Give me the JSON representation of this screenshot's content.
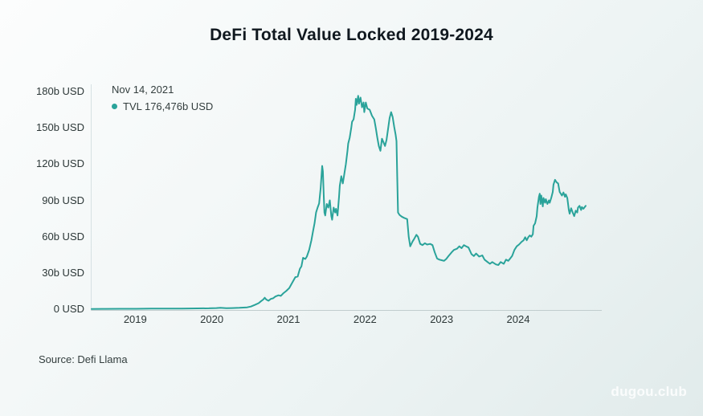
{
  "page": {
    "title": "DeFi Total Value Locked 2019-2024",
    "source_note": "Source: Defi Llama",
    "watermark": "dugou.club"
  },
  "tooltip": {
    "date": "Nov 14, 2021",
    "value_text": "TVL 176,476b USD"
  },
  "colors": {
    "line": "#2aa39a",
    "dot": "#2aa39a",
    "axis_v": "#d6e1e3",
    "axis_h": "#c1cdce",
    "text": "#2c3737"
  },
  "chart_data": {
    "type": "line",
    "title": "DeFi Total Value Locked 2019-2024",
    "xlabel": "",
    "ylabel": "",
    "legend_position": "top-left",
    "grid": false,
    "x_domain": [
      2018.42,
      2025.08
    ],
    "y_domain": [
      0,
      180
    ],
    "x_ticks": [
      2019,
      2020,
      2021,
      2022,
      2023,
      2024
    ],
    "y_ticks": [
      {
        "value": 180,
        "label": "180b USD"
      },
      {
        "value": 150,
        "label": "150b USD"
      },
      {
        "value": 120,
        "label": "120b USD"
      },
      {
        "value": 90,
        "label": "90b USD"
      },
      {
        "value": 60,
        "label": "60b USD"
      },
      {
        "value": 30,
        "label": "30b USD"
      },
      {
        "value": 0,
        "label": "0 USD"
      }
    ],
    "highlight": {
      "date": "Nov 14, 2021",
      "series": "TVL",
      "value_billions_usd": 176.476
    },
    "series": [
      {
        "name": "TVL",
        "unit": "b USD",
        "color": "#2aa39a",
        "points": [
          [
            2018.42,
            0.2
          ],
          [
            2018.6,
            0.25
          ],
          [
            2018.8,
            0.3
          ],
          [
            2019.0,
            0.35
          ],
          [
            2019.2,
            0.45
          ],
          [
            2019.4,
            0.5
          ],
          [
            2019.6,
            0.55
          ],
          [
            2019.8,
            0.65
          ],
          [
            2019.95,
            0.7
          ],
          [
            2020.05,
            0.9
          ],
          [
            2020.1,
            1.2
          ],
          [
            2020.18,
            0.8
          ],
          [
            2020.25,
            0.9
          ],
          [
            2020.35,
            1.1
          ],
          [
            2020.45,
            1.5
          ],
          [
            2020.5,
            2.2
          ],
          [
            2020.55,
            3.5
          ],
          [
            2020.6,
            5.0
          ],
          [
            2020.63,
            6.5
          ],
          [
            2020.66,
            8.0
          ],
          [
            2020.68,
            9.5
          ],
          [
            2020.7,
            8.0
          ],
          [
            2020.73,
            7.0
          ],
          [
            2020.76,
            8.5
          ],
          [
            2020.79,
            9.0
          ],
          [
            2020.82,
            10.5
          ],
          [
            2020.86,
            11.5
          ],
          [
            2020.89,
            11.0
          ],
          [
            2020.92,
            13.0
          ],
          [
            2020.96,
            15.0
          ],
          [
            2021.0,
            17.5
          ],
          [
            2021.04,
            22.0
          ],
          [
            2021.08,
            26.5
          ],
          [
            2021.11,
            27.0
          ],
          [
            2021.14,
            33.5
          ],
          [
            2021.16,
            35.5
          ],
          [
            2021.18,
            42.5
          ],
          [
            2021.21,
            41.5
          ],
          [
            2021.23,
            43.5
          ],
          [
            2021.26,
            49.0
          ],
          [
            2021.29,
            57.0
          ],
          [
            2021.31,
            64.0
          ],
          [
            2021.33,
            71.0
          ],
          [
            2021.35,
            80.0
          ],
          [
            2021.37,
            84.0
          ],
          [
            2021.39,
            87.5
          ],
          [
            2021.41,
            100.0
          ],
          [
            2021.43,
            118.5
          ],
          [
            2021.44,
            114.0
          ],
          [
            2021.45,
            95.0
          ],
          [
            2021.46,
            80.0
          ],
          [
            2021.47,
            77.5
          ],
          [
            2021.49,
            87.0
          ],
          [
            2021.51,
            84.0
          ],
          [
            2021.53,
            90.0
          ],
          [
            2021.55,
            77.0
          ],
          [
            2021.56,
            74.0
          ],
          [
            2021.58,
            84.0
          ],
          [
            2021.6,
            80.0
          ],
          [
            2021.61,
            83.0
          ],
          [
            2021.63,
            77.5
          ],
          [
            2021.65,
            93.0
          ],
          [
            2021.66,
            102.0
          ],
          [
            2021.68,
            110.0
          ],
          [
            2021.7,
            104.0
          ],
          [
            2021.72,
            112.0
          ],
          [
            2021.74,
            120.0
          ],
          [
            2021.76,
            131.0
          ],
          [
            2021.77,
            137.0
          ],
          [
            2021.79,
            142.0
          ],
          [
            2021.81,
            150.0
          ],
          [
            2021.82,
            155.0
          ],
          [
            2021.84,
            157.0
          ],
          [
            2021.86,
            165.0
          ],
          [
            2021.87,
            174.0
          ],
          [
            2021.88,
            169.0
          ],
          [
            2021.9,
            176.476
          ],
          [
            2021.91,
            170.0
          ],
          [
            2021.93,
            175.0
          ],
          [
            2021.95,
            167.0
          ],
          [
            2021.97,
            171.0
          ],
          [
            2021.98,
            163.0
          ],
          [
            2022.0,
            171.0
          ],
          [
            2022.02,
            166.0
          ],
          [
            2022.05,
            165.0
          ],
          [
            2022.08,
            160.0
          ],
          [
            2022.11,
            157.0
          ],
          [
            2022.13,
            150.0
          ],
          [
            2022.15,
            142.0
          ],
          [
            2022.17,
            135.0
          ],
          [
            2022.19,
            131.0
          ],
          [
            2022.21,
            141.0
          ],
          [
            2022.23,
            138.0
          ],
          [
            2022.25,
            135.0
          ],
          [
            2022.27,
            140.0
          ],
          [
            2022.29,
            149.0
          ],
          [
            2022.31,
            158.0
          ],
          [
            2022.33,
            163.0
          ],
          [
            2022.35,
            159.0
          ],
          [
            2022.37,
            151.0
          ],
          [
            2022.39,
            144.0
          ],
          [
            2022.4,
            139.0
          ],
          [
            2022.41,
            110.0
          ],
          [
            2022.42,
            80.0
          ],
          [
            2022.44,
            78.0
          ],
          [
            2022.47,
            76.5
          ],
          [
            2022.5,
            75.5
          ],
          [
            2022.54,
            74.5
          ],
          [
            2022.56,
            60.0
          ],
          [
            2022.58,
            52.0
          ],
          [
            2022.61,
            56.0
          ],
          [
            2022.63,
            58.0
          ],
          [
            2022.66,
            61.5
          ],
          [
            2022.68,
            60.0
          ],
          [
            2022.71,
            54.0
          ],
          [
            2022.74,
            53.0
          ],
          [
            2022.77,
            54.5
          ],
          [
            2022.8,
            53.5
          ],
          [
            2022.84,
            54.0
          ],
          [
            2022.87,
            53.0
          ],
          [
            2022.9,
            47.0
          ],
          [
            2022.93,
            42.0
          ],
          [
            2022.96,
            41.0
          ],
          [
            2022.99,
            40.5
          ],
          [
            2023.02,
            40.0
          ],
          [
            2023.05,
            41.5
          ],
          [
            2023.08,
            44.0
          ],
          [
            2023.12,
            47.0
          ],
          [
            2023.15,
            49.0
          ],
          [
            2023.19,
            50.0
          ],
          [
            2023.22,
            52.0
          ],
          [
            2023.25,
            50.5
          ],
          [
            2023.28,
            53.0
          ],
          [
            2023.31,
            52.0
          ],
          [
            2023.34,
            51.0
          ],
          [
            2023.38,
            45.5
          ],
          [
            2023.41,
            44.0
          ],
          [
            2023.44,
            46.0
          ],
          [
            2023.48,
            43.5
          ],
          [
            2023.52,
            44.5
          ],
          [
            2023.55,
            41.0
          ],
          [
            2023.59,
            39.0
          ],
          [
            2023.62,
            37.5
          ],
          [
            2023.65,
            39.0
          ],
          [
            2023.7,
            37.0
          ],
          [
            2023.73,
            36.5
          ],
          [
            2023.76,
            39.0
          ],
          [
            2023.8,
            37.5
          ],
          [
            2023.83,
            41.0
          ],
          [
            2023.86,
            40.0
          ],
          [
            2023.91,
            44.0
          ],
          [
            2023.94,
            49.0
          ],
          [
            2023.97,
            52.0
          ],
          [
            2024.0,
            53.5
          ],
          [
            2024.03,
            55.5
          ],
          [
            2024.06,
            57.0
          ],
          [
            2024.08,
            59.5
          ],
          [
            2024.1,
            57.0
          ],
          [
            2024.12,
            59.5
          ],
          [
            2024.14,
            61.0
          ],
          [
            2024.16,
            60.0
          ],
          [
            2024.18,
            62.0
          ],
          [
            2024.19,
            69.0
          ],
          [
            2024.21,
            71.0
          ],
          [
            2024.23,
            77.0
          ],
          [
            2024.24,
            84.0
          ],
          [
            2024.26,
            93.0
          ],
          [
            2024.27,
            95.5
          ],
          [
            2024.28,
            87.0
          ],
          [
            2024.29,
            94.0
          ],
          [
            2024.31,
            85.0
          ],
          [
            2024.32,
            92.0
          ],
          [
            2024.34,
            88.0
          ],
          [
            2024.35,
            91.0
          ],
          [
            2024.37,
            87.0
          ],
          [
            2024.39,
            90.0
          ],
          [
            2024.4,
            88.0
          ],
          [
            2024.42,
            92.0
          ],
          [
            2024.44,
            97.0
          ],
          [
            2024.45,
            103.0
          ],
          [
            2024.47,
            107.0
          ],
          [
            2024.49,
            105.0
          ],
          [
            2024.51,
            104.0
          ],
          [
            2024.53,
            97.0
          ],
          [
            2024.55,
            95.0
          ],
          [
            2024.56,
            94.0
          ],
          [
            2024.58,
            96.5
          ],
          [
            2024.6,
            93.0
          ],
          [
            2024.61,
            95.0
          ],
          [
            2024.63,
            92.0
          ],
          [
            2024.65,
            82.0
          ],
          [
            2024.66,
            79.0
          ],
          [
            2024.68,
            83.5
          ],
          [
            2024.7,
            80.0
          ],
          [
            2024.72,
            77.0
          ],
          [
            2024.74,
            81.5
          ],
          [
            2024.76,
            80.0
          ],
          [
            2024.77,
            84.0
          ],
          [
            2024.79,
            85.5
          ],
          [
            2024.81,
            82.0
          ],
          [
            2024.82,
            84.5
          ],
          [
            2024.84,
            83.0
          ],
          [
            2024.87,
            85.5
          ]
        ]
      }
    ]
  }
}
